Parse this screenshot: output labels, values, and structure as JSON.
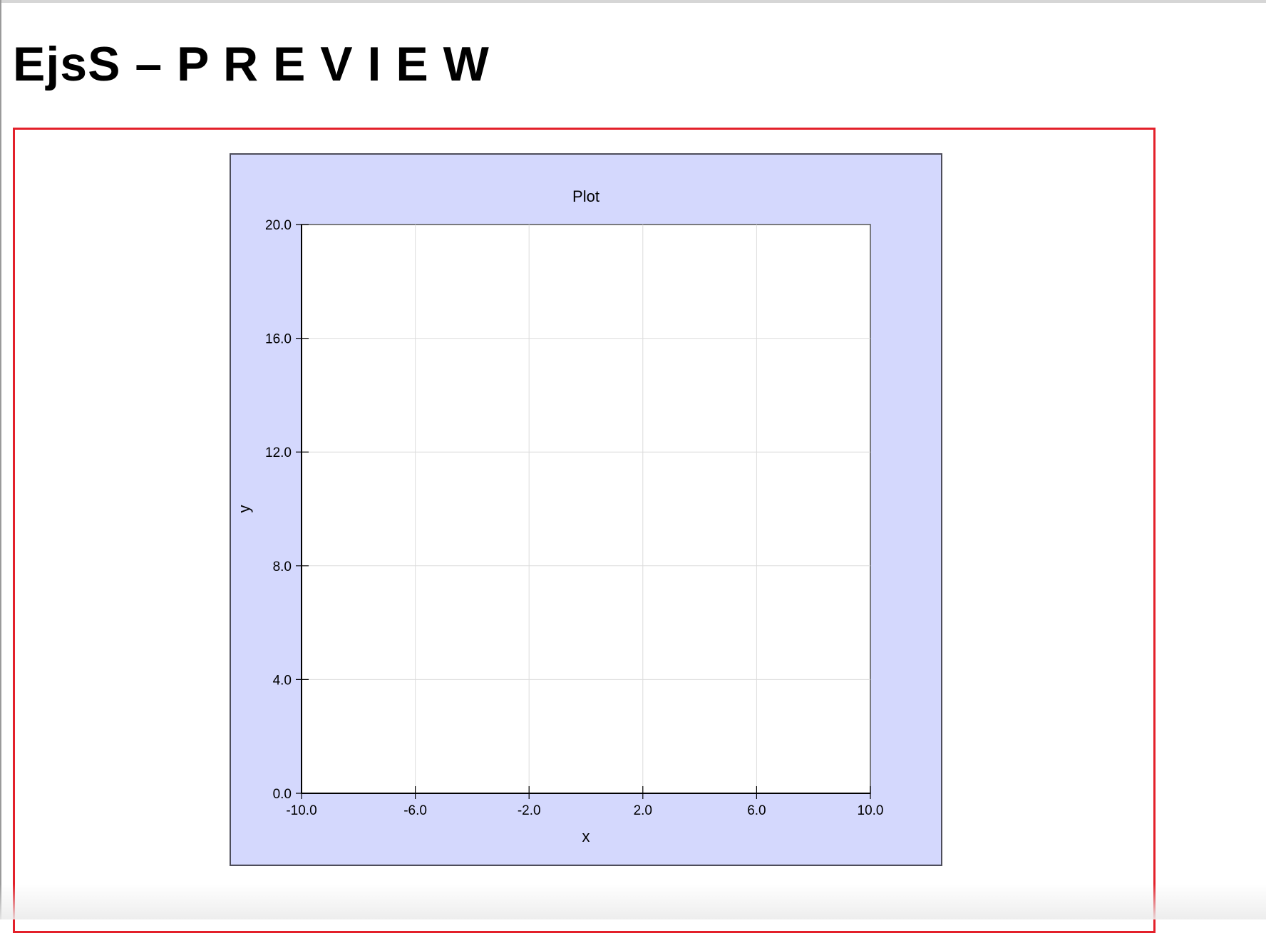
{
  "page": {
    "title": "EjsS – P R E V I E W"
  },
  "colors": {
    "frame_border": "#e3202a",
    "plot_panel_bg": "#d4d8fd",
    "plot_panel_border": "#4d4d5a",
    "plot_area_bg": "#ffffff",
    "grid": "#dcdcdc",
    "axis": "#000000"
  },
  "chart_data": {
    "type": "scatter",
    "title": "Plot",
    "xlabel": "x",
    "ylabel": "y",
    "xlim": [
      -10.0,
      10.0
    ],
    "ylim": [
      0.0,
      20.0
    ],
    "xticks": [
      -10.0,
      -6.0,
      -2.0,
      2.0,
      6.0,
      10.0
    ],
    "xtick_labels": [
      "-10.0",
      "-6.0",
      "-2.0",
      "2.0",
      "6.0",
      "10.0"
    ],
    "yticks": [
      0.0,
      4.0,
      8.0,
      12.0,
      16.0,
      20.0
    ],
    "ytick_labels": [
      "0.0",
      "4.0",
      "8.0",
      "12.0",
      "16.0",
      "20.0"
    ],
    "grid": true,
    "series": []
  }
}
